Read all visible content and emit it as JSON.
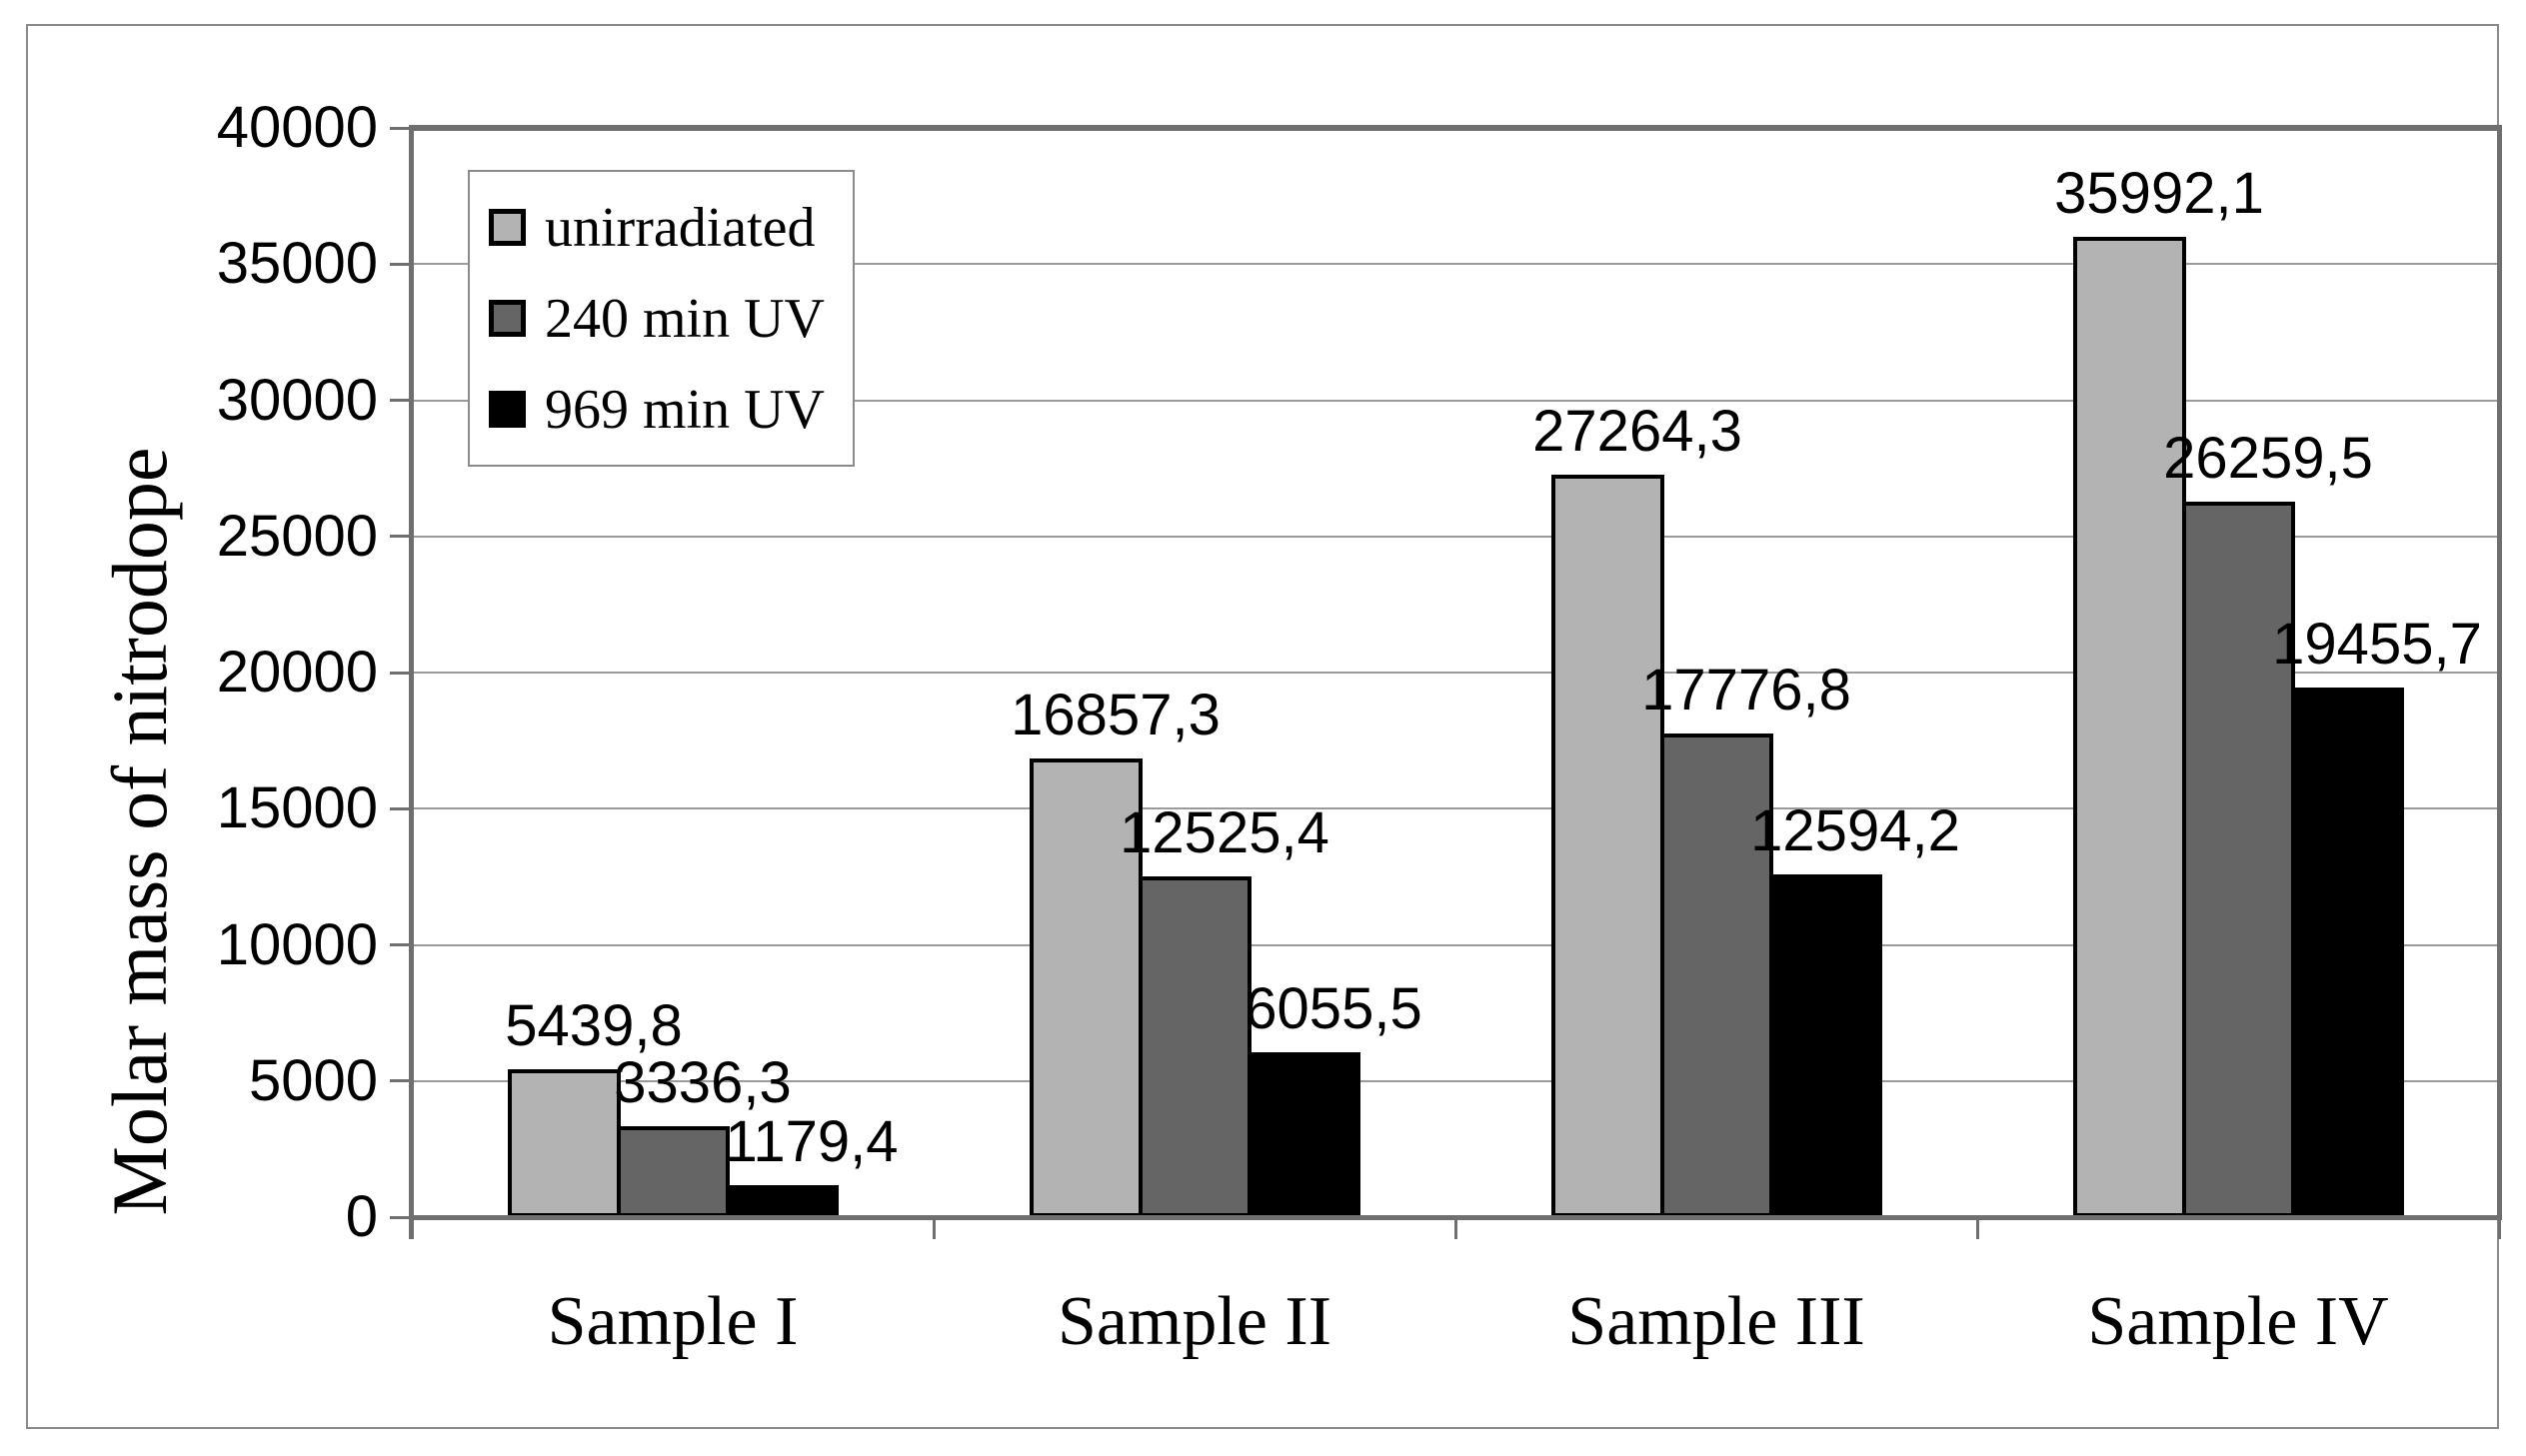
{
  "chart_data": {
    "type": "bar",
    "title": "",
    "categories": [
      "Sample I",
      "Sample II",
      "Sample III",
      "Sample IV"
    ],
    "series": [
      {
        "name": "unirradiated",
        "color": "#b3b3b3",
        "values": [
          5439.8,
          16857.3,
          27264.3,
          35992.1
        ],
        "labels": [
          "5439,8",
          "16857,3",
          "27264,3",
          "35992,1"
        ]
      },
      {
        "name": "240 min UV",
        "color": "#656565",
        "values": [
          3336.3,
          12525.4,
          17776.8,
          26259.5
        ],
        "labels": [
          "3336,3",
          "12525,4",
          "17776,8",
          "26259,5"
        ]
      },
      {
        "name": "969 min UV",
        "color": "#000000",
        "values": [
          1179.4,
          6055.5,
          12594.2,
          19455.7
        ],
        "labels": [
          "1179,4",
          "6055,5",
          "12594,2",
          "19455,7"
        ]
      }
    ],
    "xlabel": "",
    "ylabel": "Molar mass of nitrodope",
    "ylim": [
      0,
      40000
    ],
    "ytick_step": 5000,
    "ytick_labels": [
      "0",
      "5000",
      "10000",
      "15000",
      "20000",
      "25000",
      "30000",
      "35000",
      "40000"
    ],
    "grid": true,
    "legend_position": "top-left",
    "decimal_separator": ",",
    "bar_border_color": "#000000"
  }
}
